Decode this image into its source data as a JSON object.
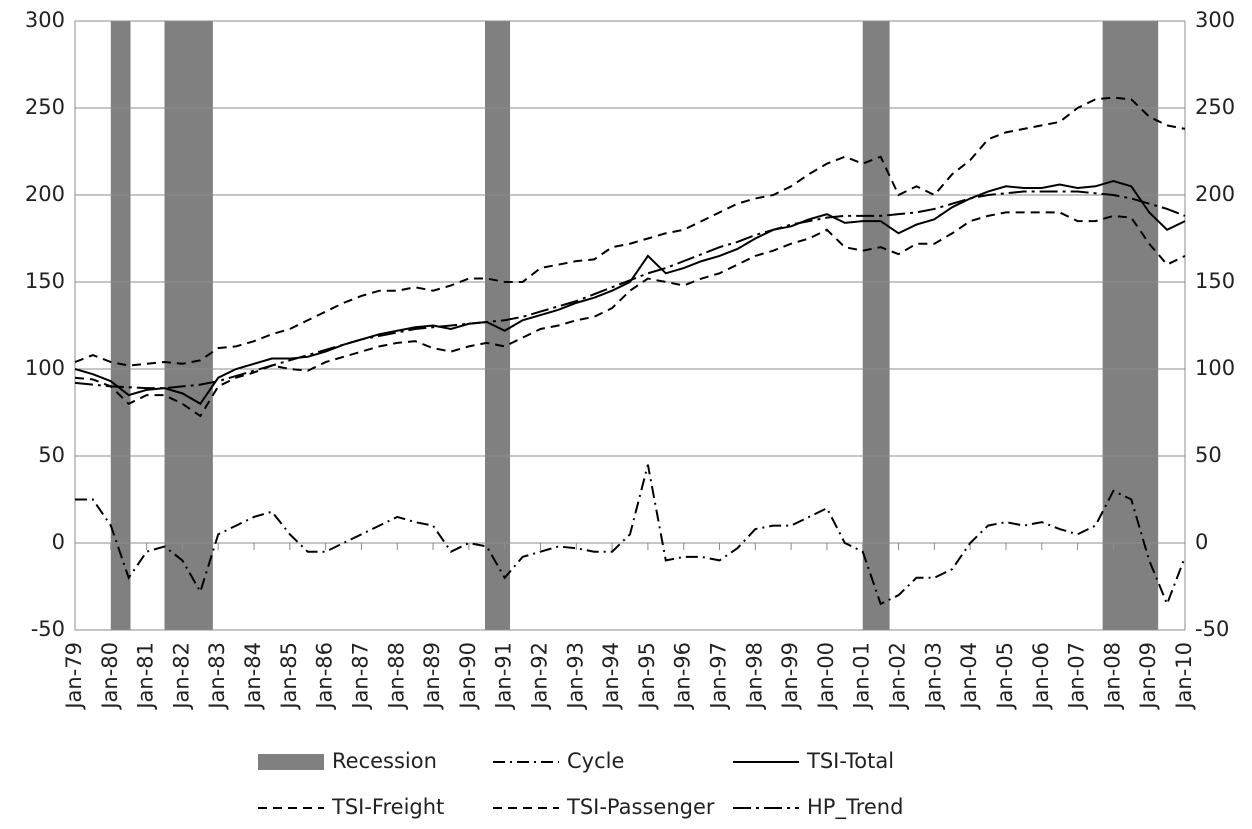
{
  "chart_data": {
    "type": "line",
    "x": [
      1979,
      1979.5,
      1980,
      1980.5,
      1981,
      1981.5,
      1982,
      1982.5,
      1983,
      1983.5,
      1984,
      1984.5,
      1985,
      1985.5,
      1986,
      1986.5,
      1987,
      1987.5,
      1988,
      1988.5,
      1989,
      1989.5,
      1990,
      1990.5,
      1991,
      1991.5,
      1992,
      1992.5,
      1993,
      1993.5,
      1994,
      1994.5,
      1995,
      1995.5,
      1996,
      1996.5,
      1997,
      1997.5,
      1998,
      1998.5,
      1999,
      1999.5,
      2000,
      2000.5,
      2001,
      2001.5,
      2002,
      2002.5,
      2003,
      2003.5,
      2004,
      2004.5,
      2005,
      2005.5,
      2006,
      2006.5,
      2007,
      2007.5,
      2008,
      2008.5,
      2009,
      2009.5,
      2010
    ],
    "xlim": [
      1979,
      2010
    ],
    "xticks": [
      {
        "value": 1979,
        "label": "Jan-79"
      },
      {
        "value": 1980,
        "label": "Jan-80"
      },
      {
        "value": 1981,
        "label": "Jan-81"
      },
      {
        "value": 1982,
        "label": "Jan-82"
      },
      {
        "value": 1983,
        "label": "Jan-83"
      },
      {
        "value": 1984,
        "label": "Jan-84"
      },
      {
        "value": 1985,
        "label": "Jan-85"
      },
      {
        "value": 1986,
        "label": "Jan-86"
      },
      {
        "value": 1987,
        "label": "Jan-87"
      },
      {
        "value": 1988,
        "label": "Jan-88"
      },
      {
        "value": 1989,
        "label": "Jan-89"
      },
      {
        "value": 1990,
        "label": "Jan-90"
      },
      {
        "value": 1991,
        "label": "Jan-91"
      },
      {
        "value": 1992,
        "label": "Jan-92"
      },
      {
        "value": 1993,
        "label": "Jan-93"
      },
      {
        "value": 1994,
        "label": "Jan-94"
      },
      {
        "value": 1995,
        "label": "Jan-95"
      },
      {
        "value": 1996,
        "label": "Jan-96"
      },
      {
        "value": 1997,
        "label": "Jan-97"
      },
      {
        "value": 1998,
        "label": "Jan-98"
      },
      {
        "value": 1999,
        "label": "Jan-99"
      },
      {
        "value": 2000,
        "label": "Jan-00"
      },
      {
        "value": 2001,
        "label": "Jan-01"
      },
      {
        "value": 2002,
        "label": "Jan-02"
      },
      {
        "value": 2003,
        "label": "Jan-03"
      },
      {
        "value": 2004,
        "label": "Jan-04"
      },
      {
        "value": 2005,
        "label": "Jan-05"
      },
      {
        "value": 2006,
        "label": "Jan-06"
      },
      {
        "value": 2007,
        "label": "Jan-07"
      },
      {
        "value": 2008,
        "label": "Jan-08"
      },
      {
        "value": 2009,
        "label": "Jan-09"
      },
      {
        "value": 2010,
        "label": "Jan-10"
      }
    ],
    "ylim": [
      -50,
      300
    ],
    "yticks": [
      -50,
      0,
      50,
      100,
      150,
      200,
      250,
      300
    ],
    "y2lim": [
      -50,
      300
    ],
    "y2ticks": [
      -50,
      0,
      50,
      100,
      150,
      200,
      250,
      300
    ],
    "grid": true,
    "bands": {
      "name": "Recession",
      "color": "#808080",
      "spans": [
        [
          1980.0,
          1980.55
        ],
        [
          1981.5,
          1982.85
        ],
        [
          1990.45,
          1991.15
        ],
        [
          2001.0,
          2001.75
        ],
        [
          2007.7,
          2009.25
        ]
      ]
    },
    "series": [
      {
        "name": "Cycle",
        "color": "#000000",
        "dash": "12,5,2,5",
        "axis": "y2",
        "values": [
          25,
          25,
          10,
          -20,
          -5,
          -2,
          -10,
          -28,
          5,
          10,
          15,
          18,
          5,
          -5,
          -5,
          0,
          5,
          10,
          15,
          12,
          10,
          -5,
          0,
          -2,
          -20,
          -8,
          -5,
          -2,
          -3,
          -5,
          -5,
          5,
          45,
          -10,
          -8,
          -8,
          -10,
          -3,
          8,
          10,
          10,
          15,
          20,
          0,
          -5,
          -35,
          -30,
          -20,
          -20,
          -15,
          0,
          10,
          12,
          10,
          12,
          8,
          5,
          10,
          30,
          25,
          -10,
          -35,
          -8
        ]
      },
      {
        "name": "TSI-Total",
        "color": "#000000",
        "dash": "",
        "values": [
          100,
          97,
          93,
          85,
          88,
          89,
          86,
          80,
          95,
          100,
          103,
          106,
          106,
          107,
          110,
          114,
          117,
          120,
          122,
          124,
          125,
          123,
          126,
          127,
          122,
          128,
          131,
          134,
          138,
          141,
          145,
          150,
          165,
          155,
          158,
          162,
          165,
          169,
          175,
          180,
          182,
          186,
          189,
          184,
          185,
          185,
          178,
          183,
          186,
          193,
          198,
          202,
          205,
          204,
          204,
          206,
          204,
          205,
          208,
          205,
          190,
          180,
          185
        ]
      },
      {
        "name": "TSI-Freight",
        "color": "#000000",
        "dash": "9,6",
        "values": [
          95,
          94,
          90,
          80,
          85,
          85,
          80,
          73,
          90,
          95,
          98,
          102,
          100,
          99,
          104,
          107,
          110,
          113,
          115,
          116,
          112,
          110,
          113,
          115,
          113,
          118,
          123,
          125,
          128,
          130,
          135,
          145,
          152,
          150,
          148,
          152,
          155,
          160,
          165,
          168,
          172,
          175,
          180,
          170,
          168,
          170,
          166,
          172,
          172,
          178,
          185,
          188,
          190,
          190,
          190,
          190,
          185,
          185,
          188,
          187,
          172,
          160,
          165
        ]
      },
      {
        "name": "TSI-Passenger",
        "color": "#000000",
        "dash": "9,6",
        "values": [
          104,
          108,
          104,
          102,
          103,
          104,
          103,
          105,
          112,
          113,
          116,
          120,
          123,
          128,
          133,
          138,
          142,
          145,
          145,
          147,
          145,
          148,
          152,
          152,
          150,
          150,
          158,
          160,
          162,
          163,
          170,
          172,
          175,
          178,
          180,
          185,
          190,
          195,
          198,
          200,
          205,
          212,
          218,
          222,
          218,
          222,
          200,
          205,
          200,
          212,
          220,
          232,
          236,
          238,
          240,
          242,
          250,
          255,
          256,
          255,
          245,
          240,
          238
        ]
      },
      {
        "name": "HP_Trend",
        "color": "#000000",
        "dash": "18,5,3,5",
        "values": [
          92,
          91,
          90,
          89.5,
          89,
          89,
          90,
          91,
          93,
          96,
          99,
          102,
          105,
          108,
          111,
          114,
          117,
          119,
          121,
          123,
          124,
          125,
          126,
          127,
          128,
          130,
          133,
          136,
          139,
          143,
          147,
          151,
          155,
          158,
          162,
          166,
          170,
          173,
          177,
          180,
          183,
          185,
          187,
          188,
          188,
          188,
          189,
          190,
          192,
          195,
          198,
          200,
          201,
          202,
          202,
          202,
          202,
          201,
          200,
          198,
          195,
          192,
          188
        ]
      }
    ]
  }
}
